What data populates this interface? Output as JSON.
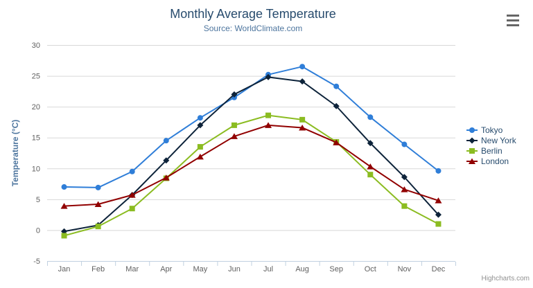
{
  "header": {
    "title": "Monthly Average Temperature",
    "subtitle": "Source: WorldClimate.com"
  },
  "credits": "Highcharts.com",
  "colors": {
    "title": "#274b6d",
    "subtitle": "#4d759e",
    "axis_title": "#4d759e",
    "axis_label": "#606060",
    "gridline": "#d8d8d8",
    "axis_line": "#c0d0e0",
    "legend_text": "#274b6d",
    "credits": "#909090",
    "menu_icon": "#666666"
  },
  "chart_data": {
    "type": "line",
    "title": "Monthly Average Temperature",
    "subtitle": "Source: WorldClimate.com",
    "xlabel": "",
    "ylabel": "Temperature (°C)",
    "ylim": [
      -5,
      30
    ],
    "ytick_interval": 5,
    "grid": true,
    "legend_position": "right",
    "categories": [
      "Jan",
      "Feb",
      "Mar",
      "Apr",
      "May",
      "Jun",
      "Jul",
      "Aug",
      "Sep",
      "Oct",
      "Nov",
      "Dec"
    ],
    "series": [
      {
        "name": "Tokyo",
        "color": "#2f7ed8",
        "marker": "circle",
        "values": [
          7.0,
          6.9,
          9.5,
          14.5,
          18.2,
          21.5,
          25.2,
          26.5,
          23.3,
          18.3,
          13.9,
          9.6
        ]
      },
      {
        "name": "New York",
        "color": "#0d233a",
        "marker": "diamond",
        "values": [
          -0.2,
          0.8,
          5.7,
          11.3,
          17.0,
          22.0,
          24.8,
          24.1,
          20.1,
          14.1,
          8.6,
          2.5
        ]
      },
      {
        "name": "Berlin",
        "color": "#8bbc21",
        "marker": "square",
        "values": [
          -0.9,
          0.6,
          3.5,
          8.4,
          13.5,
          17.0,
          18.6,
          17.9,
          14.3,
          9.0,
          3.9,
          1.0
        ]
      },
      {
        "name": "London",
        "color": "#910000",
        "marker": "triangle",
        "values": [
          3.9,
          4.2,
          5.7,
          8.5,
          11.9,
          15.2,
          17.0,
          16.6,
          14.2,
          10.3,
          6.6,
          4.8
        ]
      }
    ]
  }
}
